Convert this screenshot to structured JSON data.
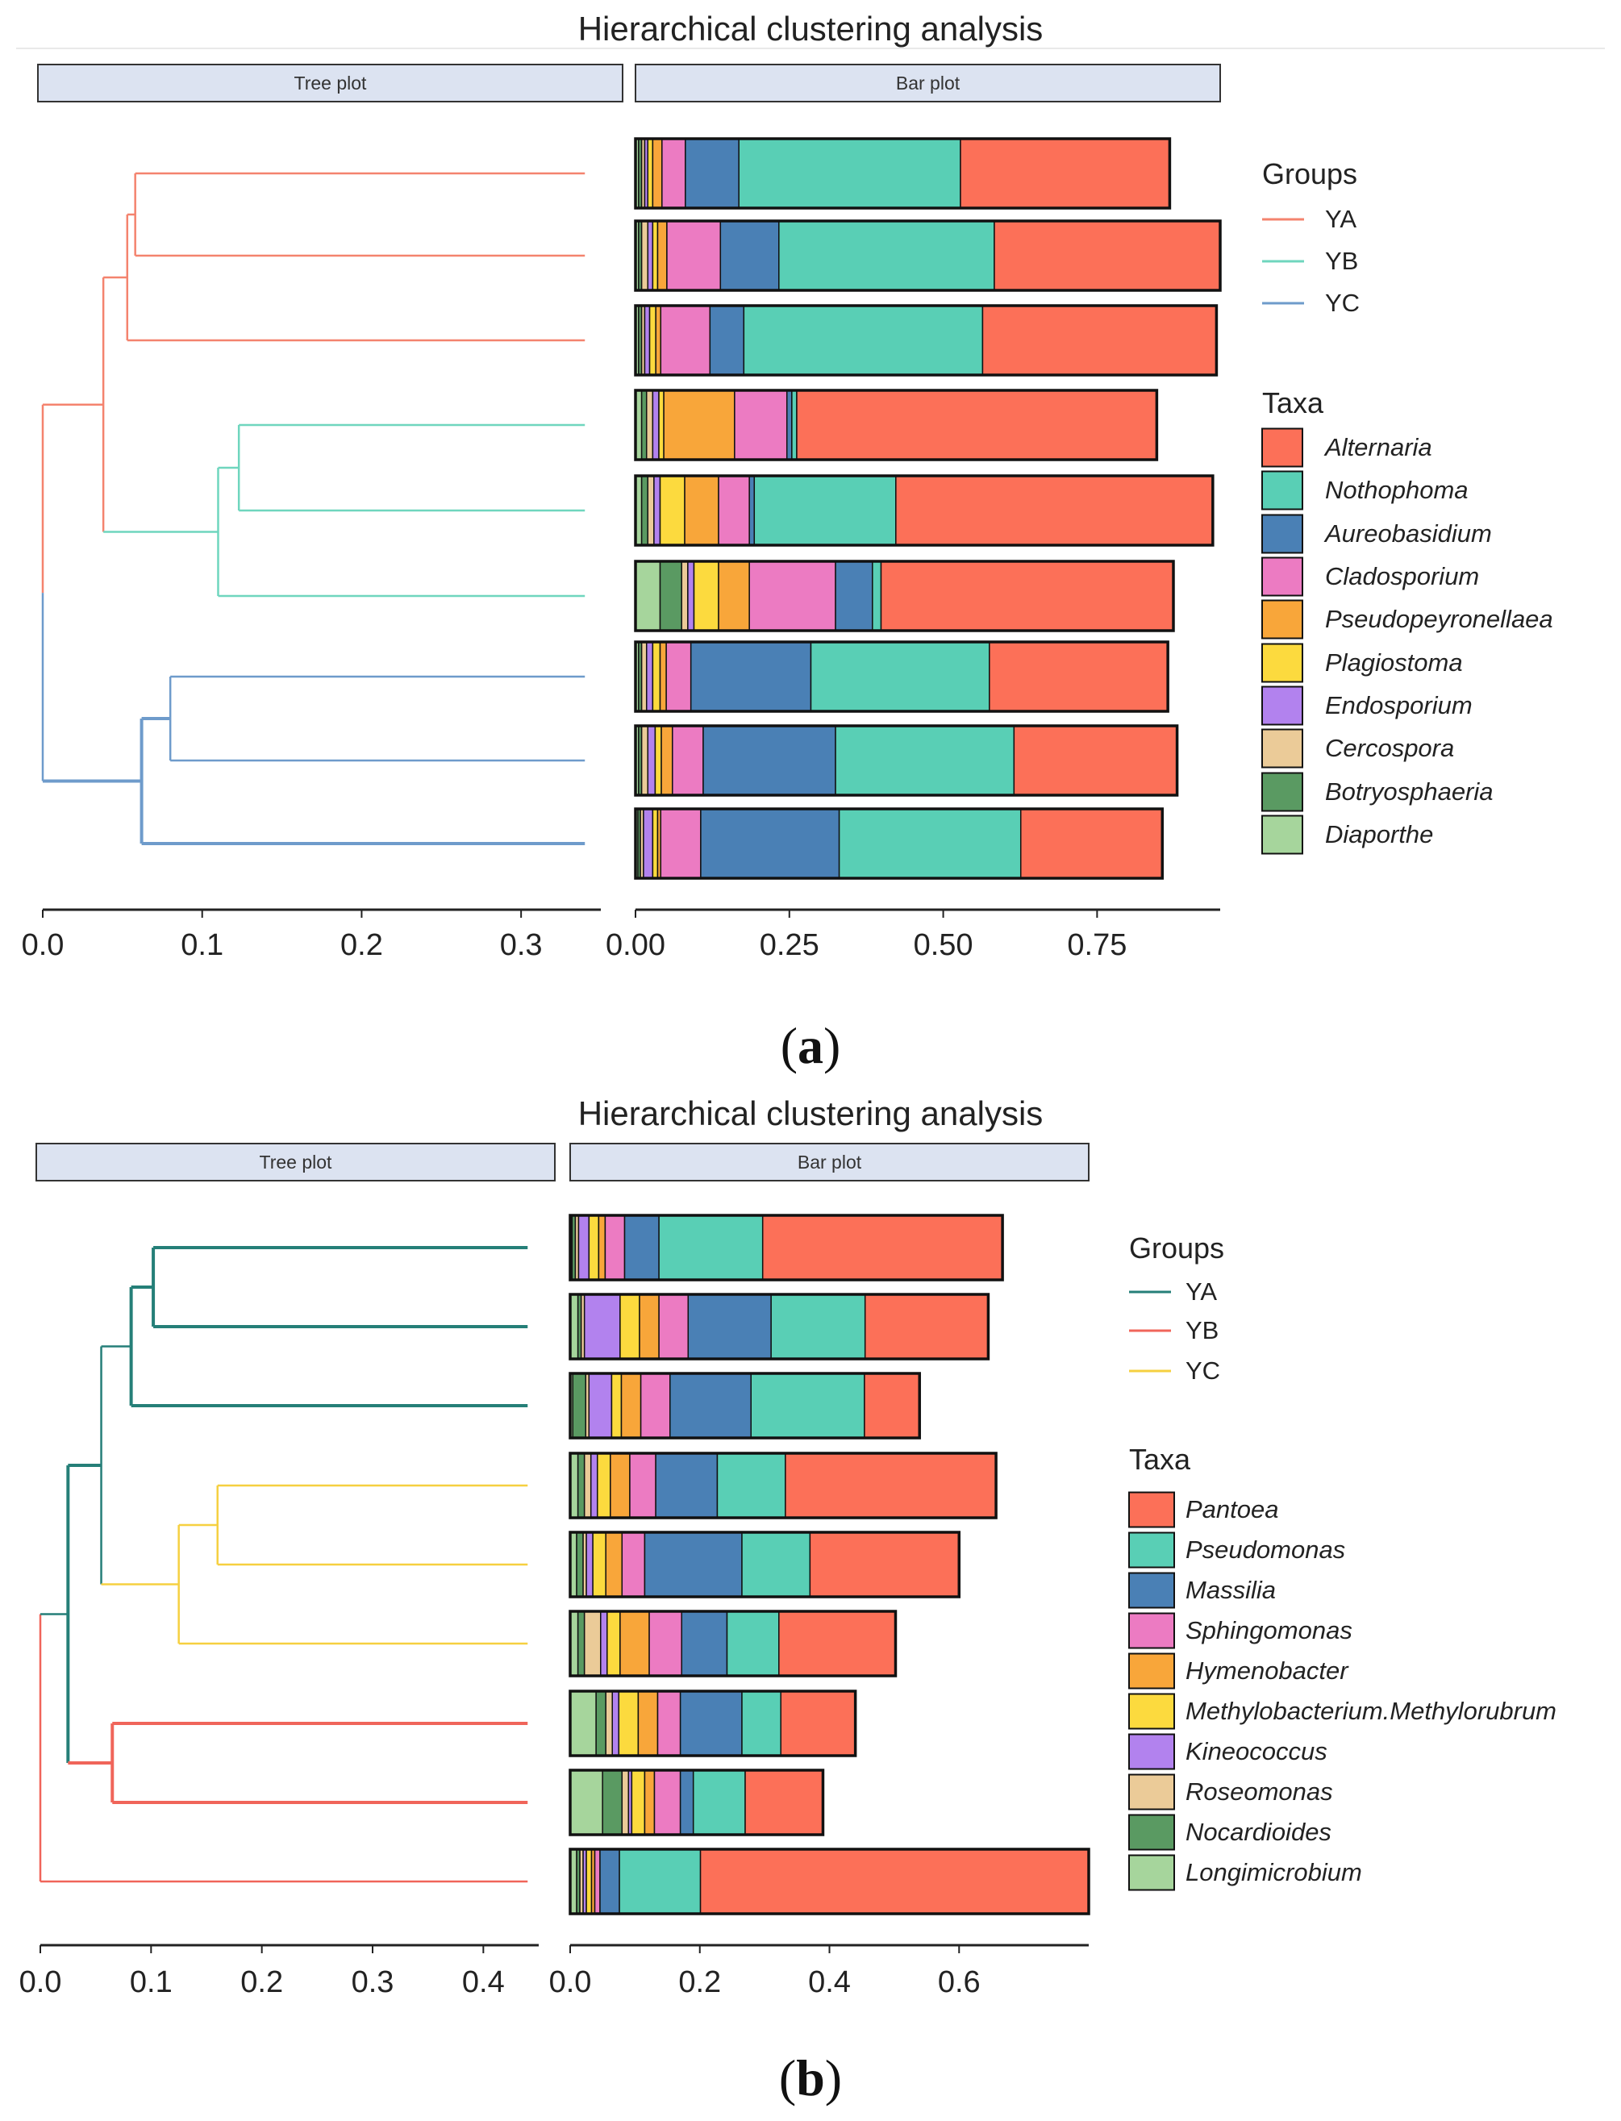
{
  "chart_data": [
    {
      "type": "dendrogram_stacked_bar",
      "panel": "a",
      "title": "Hierarchical clustering analysis",
      "strips": {
        "tree": "Tree plot",
        "bar": "Bar plot"
      },
      "tree_axis": {
        "ticks": [
          0.0,
          0.1,
          0.2,
          0.3
        ],
        "tick_labels": [
          "0.0",
          "0.1",
          "0.2",
          "0.3"
        ],
        "range": [
          0,
          0.35
        ]
      },
      "bar_axis": {
        "ticks": [
          0,
          0.25,
          0.5,
          0.75
        ],
        "tick_labels": [
          "0.00",
          "0.25",
          "0.50",
          "0.75"
        ],
        "range": [
          0,
          0.95
        ]
      },
      "groups_title": "Groups",
      "groups": [
        {
          "name": "YA",
          "color": "#F4836E"
        },
        {
          "name": "YB",
          "color": "#6FD6BE"
        },
        {
          "name": "YC",
          "color": "#6E9BCB"
        }
      ],
      "taxa_title": "Taxa",
      "taxa": [
        {
          "name": "Alternaria",
          "color": "#FC7058"
        },
        {
          "name": "Nothophoma",
          "color": "#59CFB5"
        },
        {
          "name": "Aureobasidium",
          "color": "#4A80B5"
        },
        {
          "name": "Cladosporium",
          "color": "#EC7BC2"
        },
        {
          "name": "Pseudopeyronellaea",
          "color": "#F8A63A"
        },
        {
          "name": "Plagiostoma",
          "color": "#FCDA3E"
        },
        {
          "name": "Endosporium",
          "color": "#B282EE"
        },
        {
          "name": "Cercospora",
          "color": "#EBCB98"
        },
        {
          "name": "Botryosphaeria",
          "color": "#5A9A62"
        },
        {
          "name": "Diaporthe",
          "color": "#A6D59C"
        }
      ],
      "leaf_group": [
        0,
        0,
        0,
        1,
        1,
        1,
        2,
        2,
        2
      ],
      "tree": {
        "leaf_end": 0.34,
        "main_colors": [
          "#F4836E",
          "#6FD6BE",
          "#6E9BCB"
        ],
        "main_root_height": 0.0,
        "main_root_children": [
          2,
          3
        ],
        "nodes": [
          {
            "height": 0.058,
            "children": [
              0,
              1
            ],
            "group": 0,
            "heavy": false
          },
          {
            "height": 0.053,
            "children": [
              "n0",
              2
            ],
            "group": 0,
            "heavy": false
          },
          {
            "height": 0.123,
            "children": [
              3,
              4
            ],
            "group": 1,
            "heavy": false
          },
          {
            "height": 0.11,
            "children": [
              "n2",
              5
            ],
            "group": 1,
            "heavy": false
          },
          {
            "height": 0.038,
            "children": [
              "n1",
              "n3"
            ],
            "group": 0,
            "heavy": false
          },
          {
            "height": 0.08,
            "children": [
              6,
              7
            ],
            "group": 2,
            "heavy": false
          },
          {
            "height": 0.062,
            "children": [
              "n5",
              8
            ],
            "group": 2,
            "heavy": true
          }
        ],
        "root_children": [
          "n4",
          "n6"
        ]
      },
      "bars": [
        [
          0.34,
          0.36,
          0.087,
          0.038,
          0.015,
          0.008,
          0.005,
          0.005,
          0.005,
          0.005
        ],
        [
          0.37,
          0.35,
          0.095,
          0.087,
          0.015,
          0.008,
          0.008,
          0.01,
          0.005,
          0.005
        ],
        [
          0.38,
          0.388,
          0.055,
          0.08,
          0.008,
          0.01,
          0.008,
          0.005,
          0.005,
          0.005
        ],
        [
          0.585,
          0.008,
          0.008,
          0.085,
          0.115,
          0.008,
          0.01,
          0.01,
          0.008,
          0.01
        ],
        [
          0.515,
          0.23,
          0.008,
          0.05,
          0.055,
          0.04,
          0.01,
          0.01,
          0.01,
          0.01
        ],
        [
          0.475,
          0.014,
          0.06,
          0.14,
          0.05,
          0.04,
          0.01,
          0.01,
          0.035,
          0.04
        ],
        [
          0.29,
          0.29,
          0.195,
          0.04,
          0.01,
          0.012,
          0.01,
          0.008,
          0.005,
          0.005
        ],
        [
          0.265,
          0.29,
          0.215,
          0.05,
          0.018,
          0.01,
          0.012,
          0.01,
          0.005,
          0.005
        ],
        [
          0.23,
          0.295,
          0.225,
          0.065,
          0.005,
          0.008,
          0.015,
          0.005,
          0.004,
          0.004
        ]
      ]
    },
    {
      "type": "dendrogram_stacked_bar",
      "panel": "b",
      "title": "Hierarchical clustering analysis",
      "strips": {
        "tree": "Tree plot",
        "bar": "Bar plot"
      },
      "tree_axis": {
        "ticks": [
          0.0,
          0.1,
          0.2,
          0.3,
          0.4
        ],
        "tick_labels": [
          "0.0",
          "0.1",
          "0.2",
          "0.3",
          "0.4"
        ],
        "range": [
          0,
          0.45
        ]
      },
      "bar_axis": {
        "ticks": [
          0,
          0.2,
          0.4,
          0.6
        ],
        "tick_labels": [
          "0.0",
          "0.2",
          "0.4",
          "0.6"
        ],
        "range": [
          0,
          0.8
        ]
      },
      "groups_title": "Groups",
      "groups": [
        {
          "name": "YA",
          "color": "#257F78"
        },
        {
          "name": "YB",
          "color": "#F0655A"
        },
        {
          "name": "YC",
          "color": "#F6D040"
        }
      ],
      "taxa_title": "Taxa",
      "taxa": [
        {
          "name": "Pantoea",
          "color": "#FC7058"
        },
        {
          "name": "Pseudomonas",
          "color": "#59CFB5"
        },
        {
          "name": "Massilia",
          "color": "#4A80B5"
        },
        {
          "name": "Sphingomonas",
          "color": "#EC7BC2"
        },
        {
          "name": "Hymenobacter",
          "color": "#F8A63A"
        },
        {
          "name": "Methylobacterium.Methylorubrum",
          "color": "#FCDA3E"
        },
        {
          "name": "Kineococcus",
          "color": "#B282EE"
        },
        {
          "name": "Roseomonas",
          "color": "#EBCB98"
        },
        {
          "name": "Nocardioides",
          "color": "#5A9A62"
        },
        {
          "name": "Longimicrobium",
          "color": "#A6D59C"
        }
      ],
      "leaf_group": [
        0,
        0,
        0,
        2,
        2,
        2,
        1,
        1,
        1
      ],
      "tree": {
        "leaf_end": 0.44,
        "main_colors": [
          "#257F78",
          "#F0655A",
          "#F6D040"
        ],
        "nodes": [
          {
            "height": 0.102,
            "children": [
              0,
              1
            ],
            "group": 0,
            "heavy": true
          },
          {
            "height": 0.082,
            "children": [
              "n0",
              2
            ],
            "group": 0,
            "heavy": true
          },
          {
            "height": 0.16,
            "children": [
              3,
              4
            ],
            "group": 2,
            "heavy": false
          },
          {
            "height": 0.125,
            "children": [
              "n2",
              5
            ],
            "group": 2,
            "heavy": false
          },
          {
            "height": 0.055,
            "children": [
              "n1",
              "n3"
            ],
            "group": 0,
            "heavy": false
          },
          {
            "height": 0.065,
            "children": [
              6,
              7
            ],
            "group": 1,
            "heavy": true
          },
          {
            "height": 0.025,
            "children": [
              "n4",
              "n5"
            ],
            "group": 0,
            "heavy": true
          },
          {
            "height": 0.0,
            "children": [
              "n6",
              8
            ],
            "group": 1,
            "heavy": false
          }
        ]
      },
      "bars": [
        [
          0.37,
          0.16,
          0.053,
          0.03,
          0.01,
          0.015,
          0.016,
          0.005,
          0.005,
          0.003
        ],
        [
          0.19,
          0.145,
          0.128,
          0.045,
          0.03,
          0.03,
          0.055,
          0.005,
          0.005,
          0.012
        ],
        [
          0.085,
          0.175,
          0.125,
          0.045,
          0.03,
          0.015,
          0.035,
          0.005,
          0.02,
          0.004
        ],
        [
          0.325,
          0.105,
          0.095,
          0.04,
          0.03,
          0.02,
          0.01,
          0.01,
          0.01,
          0.012
        ],
        [
          0.23,
          0.105,
          0.15,
          0.035,
          0.025,
          0.02,
          0.01,
          0.005,
          0.01,
          0.01
        ],
        [
          0.18,
          0.08,
          0.07,
          0.05,
          0.045,
          0.02,
          0.01,
          0.025,
          0.01,
          0.012
        ],
        [
          0.115,
          0.06,
          0.095,
          0.035,
          0.03,
          0.03,
          0.01,
          0.01,
          0.015,
          0.04
        ],
        [
          0.12,
          0.08,
          0.02,
          0.04,
          0.015,
          0.02,
          0.005,
          0.01,
          0.03,
          0.05
        ],
        [
          0.6,
          0.125,
          0.03,
          0.008,
          0.005,
          0.008,
          0.005,
          0.005,
          0.005,
          0.01
        ]
      ]
    }
  ],
  "panel_labels": [
    {
      "open": "(",
      "letter": "a",
      "close": ")"
    },
    {
      "open": "(",
      "letter": "b",
      "close": ")"
    }
  ]
}
